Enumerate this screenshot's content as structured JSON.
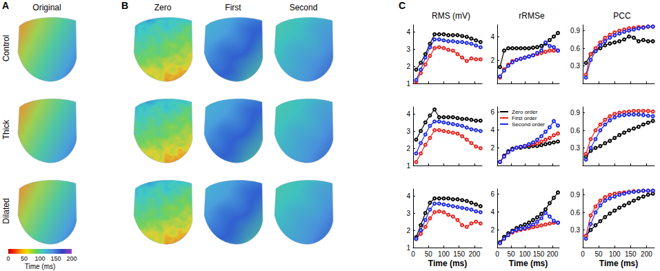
{
  "figure": {
    "panels": [
      {
        "label": "A",
        "columns": [
          "Original"
        ]
      },
      {
        "label": "B",
        "columns": [
          "Zero",
          "First",
          "Second"
        ]
      },
      {
        "label": "C"
      }
    ],
    "row_labels": [
      "Control",
      "Thick",
      "Dilated"
    ],
    "colorbar": {
      "label": "Time (ms)",
      "range": [
        0,
        200
      ],
      "ticks": [
        0,
        50,
        100,
        150,
        200
      ]
    }
  },
  "chart_data": [
    {
      "type": "line",
      "title": "RMS (mV)",
      "marker": "circle",
      "grid": false,
      "tick_labels": "y",
      "x": [
        10,
        25,
        40,
        55,
        70,
        85,
        100,
        115,
        130,
        145,
        160,
        175,
        190,
        205,
        220
      ],
      "xlim": [
        0,
        225
      ],
      "xticks": [
        0,
        50,
        100,
        150,
        200
      ],
      "ylim": [
        1,
        4.4
      ],
      "yticks": [
        1,
        2,
        3,
        4
      ],
      "series": [
        {
          "name": "Zero order",
          "color": "#000000",
          "values": [
            1.8,
            2.2,
            2.7,
            3.3,
            3.85,
            3.85,
            3.85,
            3.8,
            3.8,
            3.8,
            3.75,
            3.7,
            3.6,
            3.5,
            3.4
          ]
        },
        {
          "name": "First order",
          "color": "#e8201c",
          "values": [
            1.1,
            1.6,
            2.1,
            2.6,
            3.05,
            3.1,
            3.05,
            2.95,
            2.9,
            2.7,
            2.5,
            2.3,
            2.45,
            2.4,
            2.4
          ]
        },
        {
          "name": "Second order",
          "color": "#1c28e8",
          "values": [
            1.2,
            1.8,
            2.5,
            3.1,
            3.55,
            3.55,
            3.5,
            3.45,
            3.45,
            3.4,
            3.4,
            3.35,
            3.3,
            3.2,
            3.1
          ]
        }
      ]
    },
    {
      "type": "line",
      "title": "rRMSe",
      "marker": "circle",
      "grid": false,
      "tick_labels": "y",
      "x": [
        10,
        25,
        40,
        55,
        70,
        85,
        100,
        115,
        130,
        145,
        160,
        175,
        190,
        205,
        220
      ],
      "xlim": [
        0,
        225
      ],
      "xticks": [
        0,
        50,
        100,
        150,
        200
      ],
      "ylim": [
        0,
        5
      ],
      "yticks": [
        2,
        4
      ],
      "series": [
        {
          "name": "Zero order",
          "color": "#000000",
          "values": [
            1.4,
            2.8,
            3.0,
            3.0,
            3.0,
            3.0,
            3.0,
            3.0,
            3.05,
            3.1,
            3.2,
            3.4,
            3.7,
            4.0,
            4.3
          ]
        },
        {
          "name": "First order",
          "color": "#e8201c",
          "values": [
            0.5,
            1.2,
            1.6,
            1.9,
            2.0,
            2.1,
            2.2,
            2.3,
            2.4,
            2.5,
            2.6,
            2.7,
            2.8,
            2.8,
            2.8
          ]
        },
        {
          "name": "Second order",
          "color": "#1c28e8",
          "values": [
            0.6,
            1.1,
            1.5,
            1.8,
            2.0,
            2.1,
            2.2,
            2.3,
            2.4,
            2.6,
            2.8,
            3.5,
            3.2,
            3.1,
            2.8
          ]
        }
      ]
    },
    {
      "type": "line",
      "title": "PCC",
      "marker": "circle",
      "grid": false,
      "tick_labels": "y",
      "x": [
        10,
        25,
        40,
        55,
        70,
        85,
        100,
        115,
        130,
        145,
        160,
        175,
        190,
        205,
        220
      ],
      "xlim": [
        0,
        225
      ],
      "xticks": [
        0,
        50,
        100,
        150,
        200
      ],
      "ylim": [
        0,
        1
      ],
      "yticks": [
        0.3,
        0.6,
        0.9
      ],
      "series": [
        {
          "name": "Zero order",
          "color": "#000000",
          "values": [
            0.35,
            0.5,
            0.55,
            0.6,
            0.65,
            0.68,
            0.7,
            0.72,
            0.75,
            0.8,
            0.78,
            0.72,
            0.74,
            0.72,
            0.72
          ]
        },
        {
          "name": "First order",
          "color": "#e8201c",
          "values": [
            0.15,
            0.5,
            0.6,
            0.7,
            0.78,
            0.83,
            0.87,
            0.9,
            0.92,
            0.94,
            0.95,
            0.96,
            0.96,
            0.97,
            0.97
          ]
        },
        {
          "name": "Second order",
          "color": "#1c28e8",
          "values": [
            0.1,
            0.4,
            0.55,
            0.65,
            0.72,
            0.78,
            0.82,
            0.85,
            0.88,
            0.9,
            0.92,
            0.94,
            0.95,
            0.97,
            0.97
          ]
        }
      ]
    },
    {
      "type": "line",
      "marker": "circle",
      "grid": false,
      "tick_labels": "y",
      "x": [
        10,
        25,
        40,
        55,
        70,
        85,
        100,
        115,
        130,
        145,
        160,
        175,
        190,
        205,
        220
      ],
      "xlim": [
        0,
        225
      ],
      "xticks": [
        0,
        50,
        100,
        150,
        200
      ],
      "ylim": [
        1,
        4.4
      ],
      "yticks": [
        1,
        2,
        3,
        4
      ],
      "series": [
        {
          "name": "Zero order",
          "color": "#000000",
          "values": [
            2.5,
            3.0,
            3.5,
            3.9,
            4.25,
            3.8,
            3.8,
            3.8,
            3.8,
            3.75,
            3.7,
            3.7,
            3.65,
            3.6,
            3.6
          ]
        },
        {
          "name": "First order",
          "color": "#e8201c",
          "values": [
            1.2,
            1.7,
            2.2,
            2.6,
            3.05,
            3.05,
            3.0,
            2.95,
            2.9,
            2.85,
            2.7,
            2.5,
            2.3,
            2.1,
            2.0
          ]
        },
        {
          "name": "Second order",
          "color": "#1c28e8",
          "values": [
            1.7,
            2.3,
            2.8,
            3.3,
            3.55,
            3.55,
            3.5,
            3.45,
            3.4,
            3.35,
            3.3,
            3.2,
            3.1,
            3.05,
            3.0
          ]
        }
      ]
    },
    {
      "type": "line",
      "marker": "circle",
      "grid": false,
      "tick_labels": "y",
      "legend": "upper left",
      "x": [
        10,
        25,
        40,
        55,
        70,
        85,
        100,
        115,
        130,
        145,
        160,
        175,
        190,
        205,
        220
      ],
      "xlim": [
        0,
        225
      ],
      "xticks": [
        0,
        50,
        100,
        150,
        200
      ],
      "ylim": [
        0,
        6.6
      ],
      "yticks": [
        2,
        4,
        6
      ],
      "series": [
        {
          "name": "Zero order",
          "color": "#000000",
          "values": [
            0.4,
            1.1,
            1.6,
            1.9,
            2.0,
            2.0,
            2.1,
            2.1,
            2.2,
            2.2,
            2.3,
            2.4,
            2.5,
            2.6,
            2.7
          ]
        },
        {
          "name": "First order",
          "color": "#e8201c",
          "values": [
            0.4,
            1.0,
            1.5,
            1.8,
            2.0,
            2.1,
            2.2,
            2.3,
            2.4,
            2.5,
            2.7,
            2.9,
            3.1,
            3.4,
            3.6
          ]
        },
        {
          "name": "Second order",
          "color": "#1c28e8",
          "values": [
            0.4,
            1.0,
            1.5,
            1.8,
            2.0,
            2.1,
            2.2,
            2.4,
            2.6,
            2.9,
            3.3,
            3.8,
            4.3,
            5.0,
            4.5
          ]
        }
      ]
    },
    {
      "type": "line",
      "marker": "circle",
      "grid": false,
      "tick_labels": "y",
      "x": [
        10,
        25,
        40,
        55,
        70,
        85,
        100,
        115,
        130,
        145,
        160,
        175,
        190,
        205,
        220
      ],
      "xlim": [
        0,
        225
      ],
      "xticks": [
        0,
        50,
        100,
        150,
        200
      ],
      "ylim": [
        0,
        1
      ],
      "yticks": [
        0.3,
        0.6,
        0.9
      ],
      "series": [
        {
          "name": "Zero order",
          "color": "#000000",
          "values": [
            0.15,
            0.25,
            0.3,
            0.33,
            0.38,
            0.42,
            0.47,
            0.52,
            0.56,
            0.6,
            0.63,
            0.66,
            0.7,
            0.73,
            0.76
          ]
        },
        {
          "name": "First order",
          "color": "#e8201c",
          "values": [
            0.2,
            0.45,
            0.6,
            0.7,
            0.78,
            0.84,
            0.88,
            0.9,
            0.91,
            0.92,
            0.93,
            0.93,
            0.93,
            0.93,
            0.92
          ]
        },
        {
          "name": "Second order",
          "color": "#1c28e8",
          "values": [
            0.1,
            0.3,
            0.45,
            0.6,
            0.7,
            0.77,
            0.82,
            0.85,
            0.86,
            0.87,
            0.87,
            0.87,
            0.86,
            0.85,
            0.84
          ]
        }
      ]
    },
    {
      "type": "line",
      "x_label": "Time (ms)",
      "marker": "circle",
      "grid": false,
      "x": [
        10,
        25,
        40,
        55,
        70,
        85,
        100,
        115,
        130,
        145,
        160,
        175,
        190,
        205,
        220
      ],
      "xlim": [
        0,
        225
      ],
      "xticks": [
        0,
        50,
        100,
        150,
        200
      ],
      "ylim": [
        1,
        4.4
      ],
      "yticks": [
        1,
        2,
        3,
        4
      ],
      "series": [
        {
          "name": "Zero order",
          "color": "#000000",
          "values": [
            1.6,
            2.3,
            3.0,
            3.6,
            3.85,
            3.85,
            3.85,
            3.85,
            3.8,
            3.8,
            3.75,
            3.7,
            3.6,
            3.5,
            3.4
          ]
        },
        {
          "name": "First order",
          "color": "#e8201c",
          "values": [
            1.5,
            1.8,
            2.2,
            2.7,
            3.05,
            3.1,
            3.05,
            2.9,
            2.8,
            2.6,
            2.3,
            2.2,
            2.4,
            2.5,
            2.4
          ]
        },
        {
          "name": "Second order",
          "color": "#1c28e8",
          "values": [
            1.5,
            2.0,
            2.6,
            3.2,
            3.55,
            3.55,
            3.5,
            3.45,
            3.4,
            3.35,
            3.3,
            3.25,
            3.2,
            3.1,
            3.05
          ]
        }
      ]
    },
    {
      "type": "line",
      "x_label": "Time (ms)",
      "marker": "circle",
      "grid": false,
      "x": [
        10,
        25,
        40,
        55,
        70,
        85,
        100,
        115,
        130,
        145,
        160,
        175,
        190,
        205,
        220
      ],
      "xlim": [
        0,
        225
      ],
      "xticks": [
        0,
        50,
        100,
        150,
        200
      ],
      "ylim": [
        0,
        6.6
      ],
      "yticks": [
        2,
        4,
        6
      ],
      "series": [
        {
          "name": "Zero order",
          "color": "#000000",
          "values": [
            0.6,
            1.2,
            1.6,
            1.9,
            2.2,
            2.4,
            2.6,
            2.8,
            3.1,
            3.4,
            3.8,
            4.3,
            5.0,
            5.6,
            6.2
          ]
        },
        {
          "name": "First order",
          "color": "#e8201c",
          "values": [
            0.5,
            1.0,
            1.4,
            1.7,
            1.9,
            2.0,
            2.1,
            2.2,
            2.3,
            2.4,
            2.5,
            2.6,
            2.7,
            2.8,
            2.8
          ]
        },
        {
          "name": "Second order",
          "color": "#1c28e8",
          "values": [
            0.5,
            1.0,
            1.4,
            1.8,
            2.0,
            2.1,
            2.2,
            2.4,
            2.6,
            2.9,
            3.3,
            3.9,
            3.5,
            3.0,
            2.8
          ]
        }
      ]
    },
    {
      "type": "line",
      "x_label": "Time (ms)",
      "marker": "circle",
      "grid": false,
      "x": [
        10,
        25,
        40,
        55,
        70,
        85,
        100,
        115,
        130,
        145,
        160,
        175,
        190,
        205,
        220
      ],
      "xlim": [
        0,
        225
      ],
      "xticks": [
        0,
        50,
        100,
        150,
        200
      ],
      "ylim": [
        0,
        1
      ],
      "yticks": [
        0.3,
        0.6,
        0.9
      ],
      "series": [
        {
          "name": "Zero order",
          "color": "#000000",
          "values": [
            0.2,
            0.3,
            0.38,
            0.45,
            0.52,
            0.58,
            0.63,
            0.68,
            0.72,
            0.76,
            0.8,
            0.84,
            0.87,
            0.9,
            0.92
          ]
        },
        {
          "name": "First order",
          "color": "#e8201c",
          "values": [
            0.2,
            0.55,
            0.7,
            0.8,
            0.86,
            0.9,
            0.92,
            0.93,
            0.94,
            0.95,
            0.96,
            0.96,
            0.97,
            0.97,
            0.97
          ]
        },
        {
          "name": "Second order",
          "color": "#1c28e8",
          "values": [
            0.15,
            0.4,
            0.6,
            0.72,
            0.8,
            0.84,
            0.87,
            0.9,
            0.92,
            0.94,
            0.95,
            0.96,
            0.97,
            0.97,
            0.97
          ]
        }
      ]
    }
  ]
}
